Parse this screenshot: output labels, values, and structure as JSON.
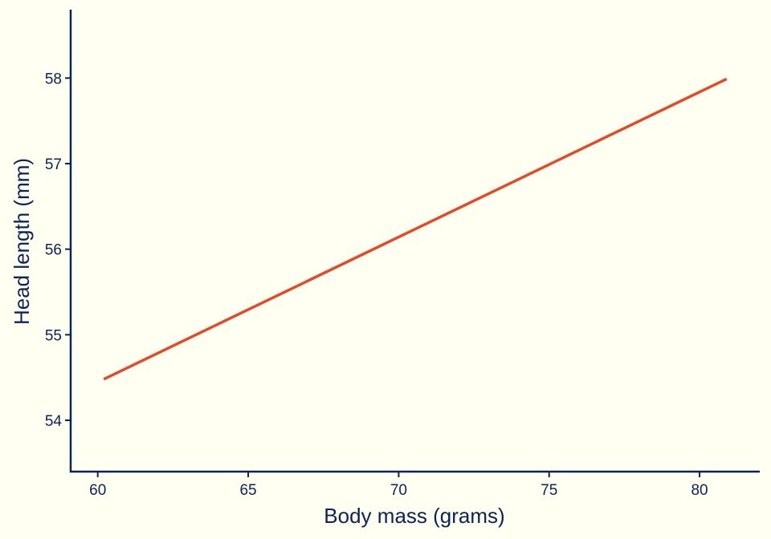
{
  "colors": {
    "background": "#fffff2",
    "axis": "#0b2454",
    "line": "#e34a2a"
  },
  "chart_data": {
    "type": "line",
    "xlabel": "Body mass (grams)",
    "ylabel": "Head length (mm)",
    "xlim": [
      59.1,
      82.0
    ],
    "ylim": [
      53.4,
      58.8
    ],
    "xticks": [
      60,
      65,
      70,
      75,
      80
    ],
    "yticks": [
      54,
      55,
      56,
      57,
      58
    ],
    "grid": false,
    "series": [
      {
        "x": [
          60.2,
          80.9
        ],
        "y": [
          54.48,
          57.99
        ]
      }
    ]
  }
}
